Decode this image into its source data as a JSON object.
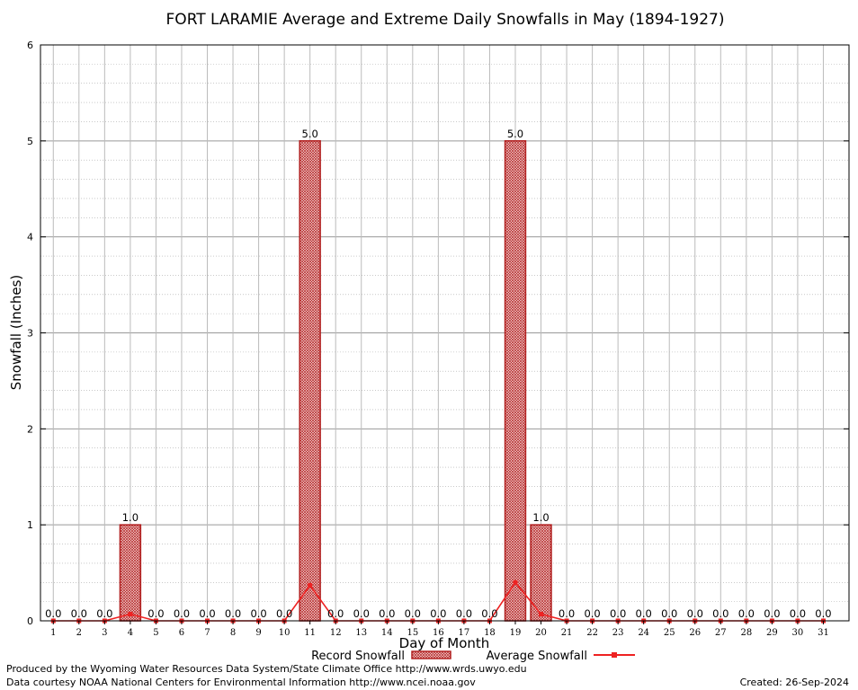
{
  "chart_data": {
    "type": "bar",
    "title": "FORT LARAMIE Average and Extreme Daily Snowfalls in May (1894-1927)",
    "xlabel": "Day of Month",
    "ylabel": "Snowfall (Inches)",
    "ylim": [
      0,
      6
    ],
    "yticks": [
      "0",
      "1",
      "2",
      "3",
      "4",
      "5",
      "6"
    ],
    "categories": [
      "1",
      "2",
      "3",
      "4",
      "5",
      "6",
      "7",
      "8",
      "9",
      "10",
      "11",
      "12",
      "13",
      "14",
      "15",
      "16",
      "17",
      "18",
      "19",
      "20",
      "21",
      "22",
      "23",
      "24",
      "25",
      "26",
      "27",
      "28",
      "29",
      "30",
      "31"
    ],
    "series": [
      {
        "name": "Record Snowfall",
        "kind": "bar",
        "color": "#b22222",
        "values": [
          0,
          0,
          0,
          1.0,
          0,
          0,
          0,
          0,
          0,
          0,
          5.0,
          0,
          0,
          0,
          0,
          0,
          0,
          0,
          5.0,
          1.0,
          0,
          0,
          0,
          0,
          0,
          0,
          0,
          0,
          0,
          0,
          0
        ],
        "labels": [
          "0.0",
          "0.0",
          "0.0",
          "1.0",
          "0.0",
          "0.0",
          "0.0",
          "0.0",
          "0.0",
          "0.0",
          "5.0",
          "0.0",
          "0.0",
          "0.0",
          "0.0",
          "0.0",
          "0.0",
          "0.0",
          "5.0",
          "1.0",
          "0.0",
          "0.0",
          "0.0",
          "0.0",
          "0.0",
          "0.0",
          "0.0",
          "0.0",
          "0.0",
          "0.0",
          "0.0"
        ]
      },
      {
        "name": "Average Snowfall",
        "kind": "line",
        "color": "#ee2222",
        "values": [
          0,
          0,
          0,
          0.07,
          0,
          0,
          0,
          0,
          0,
          0,
          0.37,
          0,
          0,
          0,
          0,
          0,
          0,
          0,
          0.4,
          0.07,
          0,
          0,
          0,
          0,
          0,
          0,
          0,
          0,
          0,
          0,
          0
        ]
      }
    ],
    "grid": true,
    "legend_position": "bottom-center"
  },
  "footer": {
    "produced_by": "Produced by the Wyoming Water Resources Data System/State Climate Office http://www.wrds.uwyo.edu",
    "data_courtesy": "Data courtesy NOAA National Centers for Environmental Information http://www.ncei.noaa.gov",
    "created": "Created: 26-Sep-2024"
  }
}
